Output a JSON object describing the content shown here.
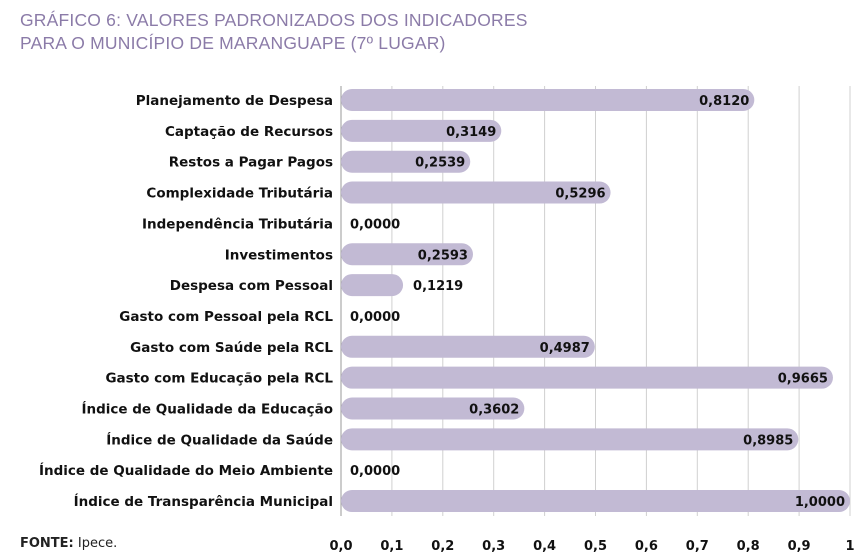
{
  "chart_data": {
    "type": "bar",
    "orientation": "horizontal",
    "title_line1": "GRÁFICO 6: VALORES PADRONIZADOS DOS INDICADORES",
    "title_line2": "PARA O MUNICÍPIO DE MARANGUAPE (7º LUGAR)",
    "categories": [
      "Planejamento de Despesa",
      "Captação de Recursos",
      "Restos a Pagar Pagos",
      "Complexidade Tributária",
      "Independência Tributária",
      "Investimentos",
      "Despesa com Pessoal",
      "Gasto com Pessoal pela RCL",
      "Gasto com Saúde pela RCL",
      "Gasto com Educação pela RCL",
      "Índice de Qualidade da Educação",
      "Índice de Qualidade da Saúde",
      "Índice de Qualidade do Meio Ambiente",
      "Índice de Transparência Municipal"
    ],
    "values": [
      0.812,
      0.3149,
      0.2539,
      0.5296,
      0.0,
      0.2593,
      0.1219,
      0.0,
      0.4987,
      0.9665,
      0.3602,
      0.8985,
      0.0,
      1.0
    ],
    "value_labels": [
      "0,8120",
      "0,3149",
      "0,2539",
      "0,5296",
      "0,0000",
      "0,2593",
      "0,1219",
      "0,0000",
      "0,4987",
      "0,9665",
      "0,3602",
      "0,8985",
      "0,0000",
      "1,0000"
    ],
    "xlim": [
      0,
      1
    ],
    "xticks": [
      0,
      0.1,
      0.2,
      0.3,
      0.4,
      0.5,
      0.6,
      0.7,
      0.8,
      0.9,
      1
    ],
    "xtick_labels": [
      "0,0",
      "0,1",
      "0,2",
      "0,3",
      "0,4",
      "0,5",
      "0,6",
      "0,7",
      "0,8",
      "0,9",
      "1"
    ],
    "grid": true,
    "bar_color": "#c2bad4",
    "title_color": "#8b7ba8"
  },
  "source": {
    "label": "FONTE:",
    "text": " Ipece."
  }
}
